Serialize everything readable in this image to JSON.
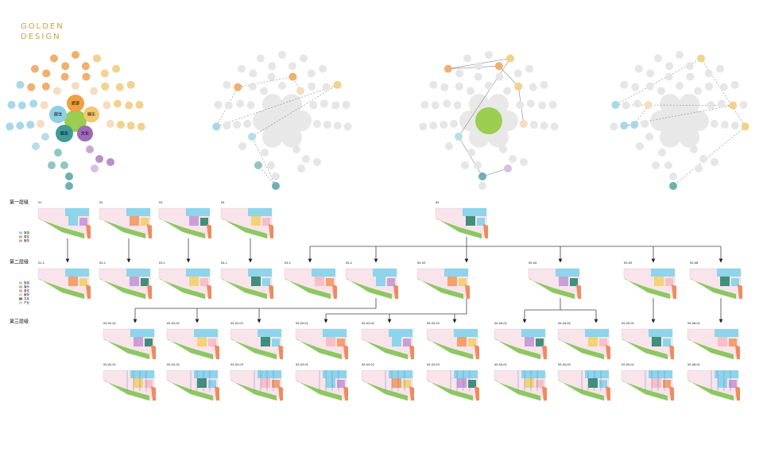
{
  "header": {
    "logo": [
      "GOLDEN",
      "DESIGN"
    ]
  },
  "bubbles": {
    "labels": [
      "旅游",
      "娱乐",
      "居住",
      "服务",
      "文化"
    ]
  },
  "levels": [
    "第一层级",
    "第二层级",
    "第三层级"
  ],
  "rows": [
    [
      "01",
      "02",
      "03",
      "04",
      "05"
    ],
    [
      "01-1",
      "02-1",
      "03-1",
      "04-1",
      "05-1",
      "05-2",
      "05-03",
      "05-04",
      "05-05",
      "05-06"
    ],
    [
      "05-02-01",
      "05-02-02",
      "05-02-03",
      "05-03-01",
      "05-03-02",
      "05-03-03",
      "05-04-01",
      "05-04-02",
      "05-05-01",
      "05-06-01"
    ],
    [
      "05-02-01",
      "05-02-02",
      "05-02-03",
      "05-03-01",
      "05-03-02",
      "05-03-03",
      "05-04-01",
      "05-04-02",
      "05-05-01",
      "05-06-01"
    ]
  ],
  "legends": {
    "level1": [
      "旅游",
      "居住",
      "服务"
    ],
    "level2": [
      "旅游",
      "娱乐",
      "居住",
      "服务",
      "文化",
      "产业"
    ]
  }
}
